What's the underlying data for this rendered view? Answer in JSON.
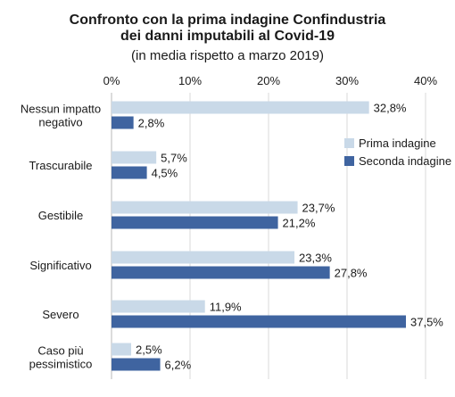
{
  "chart_data": {
    "type": "bar",
    "orientation": "horizontal",
    "title": [
      "Confronto con la prima indagine Confindustria",
      "dei danni imputabili al Covid-19"
    ],
    "subtitle": "(in media rispetto a marzo 2019)",
    "xlim": [
      0,
      40
    ],
    "x_ticks": [
      0,
      10,
      20,
      30,
      40
    ],
    "x_tick_labels": [
      "0%",
      "10%",
      "20%",
      "30%",
      "40%"
    ],
    "x_axis_position": "top",
    "grid": "vertical",
    "categories": [
      [
        "Nessun impatto",
        "negativo"
      ],
      [
        "Trascurabile"
      ],
      [
        "Gestibile"
      ],
      [
        "Significativo"
      ],
      [
        "Severo"
      ],
      [
        "Caso più",
        "pessimistico"
      ]
    ],
    "series": [
      {
        "name": "Prima indagine",
        "color": "#c9d9e8",
        "values": [
          32.8,
          5.7,
          23.7,
          23.3,
          11.9,
          2.5
        ],
        "labels": [
          "32,8%",
          "5,7%",
          "23,7%",
          "23,3%",
          "11,9%",
          "2,5%"
        ]
      },
      {
        "name": "Seconda indagine",
        "color": "#3f64a0",
        "values": [
          2.8,
          4.5,
          21.2,
          27.8,
          37.5,
          6.2
        ],
        "labels": [
          "2,8%",
          "4,5%",
          "21,2%",
          "27,8%",
          "37,5%",
          "6,2%"
        ]
      }
    ],
    "legend": "right, between first and third category"
  }
}
